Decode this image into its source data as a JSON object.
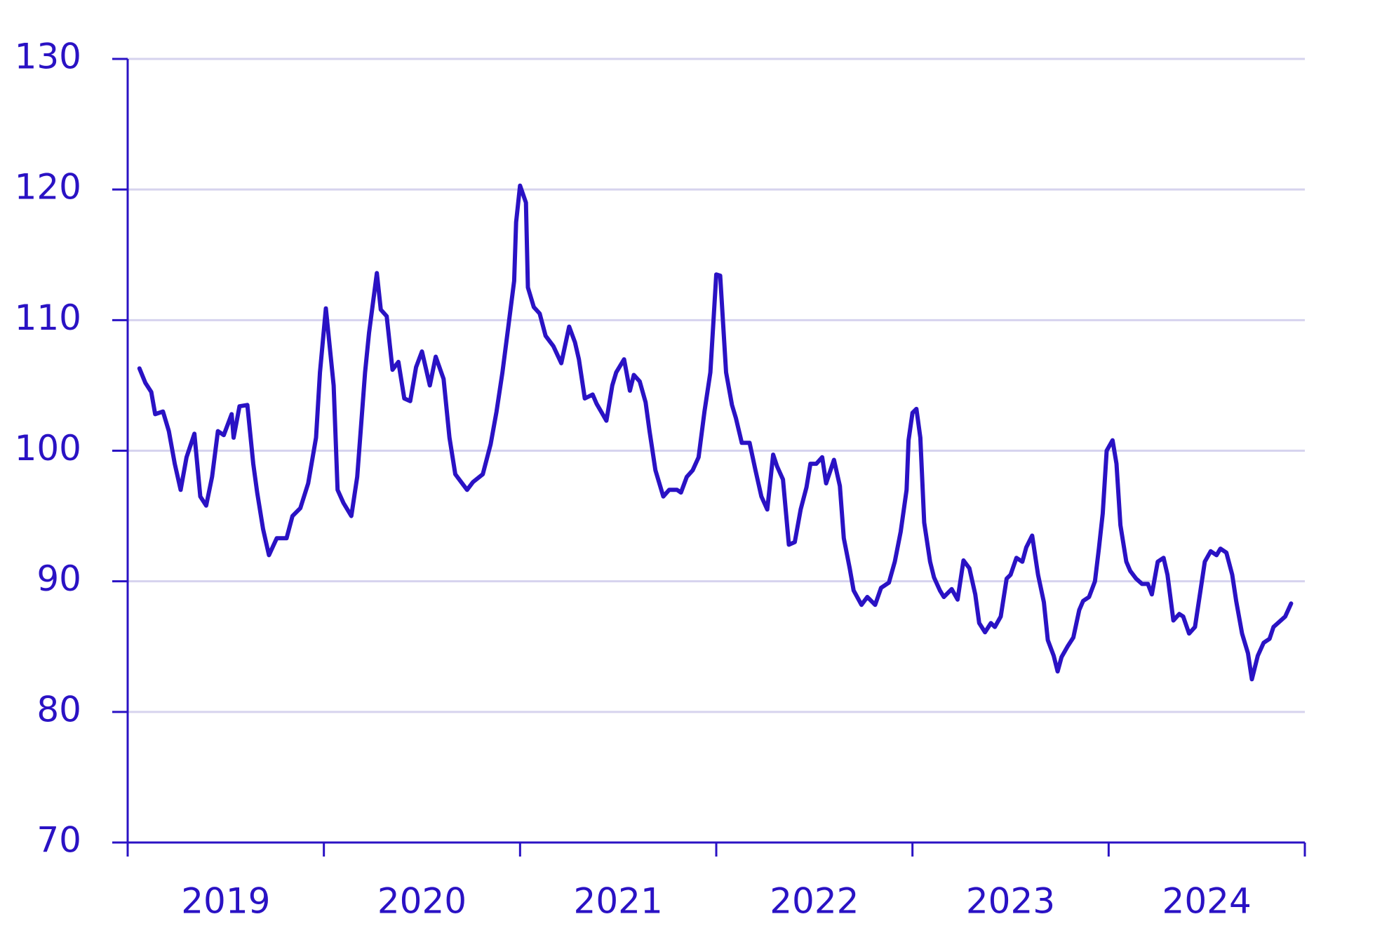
{
  "chart_data": {
    "type": "line",
    "color": "#2a12c4",
    "grid": true,
    "xlim": [
      2019,
      2025
    ],
    "xticks": [
      2019,
      2020,
      2021,
      2022,
      2023,
      2024,
      2025
    ],
    "x_labels": [
      "2019",
      "2020",
      "2021",
      "2022",
      "2023",
      "2024"
    ],
    "ylim": [
      70,
      130
    ],
    "yticks": [
      70,
      80,
      90,
      100,
      110,
      120,
      130
    ],
    "x": [
      2019.06,
      2019.09,
      2019.12,
      2019.14,
      2019.18,
      2019.21,
      2019.24,
      2019.27,
      2019.3,
      2019.34,
      2019.37,
      2019.4,
      2019.43,
      2019.46,
      2019.49,
      2019.53,
      2019.54,
      2019.57,
      2019.61,
      2019.64,
      2019.66,
      2019.69,
      2019.72,
      2019.76,
      2019.81,
      2019.84,
      2019.88,
      2019.92,
      2019.96,
      2019.98,
      2020.01,
      2020.05,
      2020.07,
      2020.1,
      2020.14,
      2020.17,
      2020.19,
      2020.21,
      2020.23,
      2020.27,
      2020.29,
      2020.32,
      2020.35,
      2020.38,
      2020.41,
      2020.44,
      2020.47,
      2020.5,
      2020.54,
      2020.57,
      2020.61,
      2020.64,
      2020.67,
      2020.7,
      2020.73,
      2020.76,
      2020.81,
      2020.85,
      2020.88,
      2020.91,
      2020.94,
      2020.97,
      2020.98,
      2021.0,
      2021.03,
      2021.04,
      2021.07,
      2021.1,
      2021.13,
      2021.17,
      2021.21,
      2021.25,
      2021.28,
      2021.3,
      2021.33,
      2021.37,
      2021.39,
      2021.44,
      2021.47,
      2021.49,
      2021.53,
      2021.56,
      2021.58,
      2021.61,
      2021.64,
      2021.66,
      2021.69,
      2021.73,
      2021.76,
      2021.8,
      2021.82,
      2021.85,
      2021.88,
      2021.91,
      2021.94,
      2021.97,
      2022.0,
      2022.02,
      2022.05,
      2022.08,
      2022.1,
      2022.13,
      2022.17,
      2022.2,
      2022.23,
      2022.26,
      2022.29,
      2022.31,
      2022.34,
      2022.37,
      2022.4,
      2022.43,
      2022.46,
      2022.48,
      2022.51,
      2022.54,
      2022.56,
      2022.6,
      2022.63,
      2022.65,
      2022.68,
      2022.7,
      2022.74,
      2022.77,
      2022.81,
      2022.84,
      2022.88,
      2022.91,
      2022.94,
      2022.97,
      2022.98,
      2023.0,
      2023.02,
      2023.04,
      2023.06,
      2023.09,
      2023.11,
      2023.14,
      2023.16,
      2023.2,
      2023.23,
      2023.26,
      2023.29,
      2023.32,
      2023.34,
      2023.37,
      2023.4,
      2023.42,
      2023.45,
      2023.48,
      2023.5,
      2023.53,
      2023.56,
      2023.58,
      2023.61,
      2023.64,
      2023.67,
      2023.69,
      2023.72,
      2023.74,
      2023.76,
      2023.79,
      2023.82,
      2023.85,
      2023.87,
      2023.9,
      2023.93,
      2023.95,
      2023.97,
      2023.99,
      2024.02,
      2024.04,
      2024.06,
      2024.09,
      2024.11,
      2024.14,
      2024.17,
      2024.2,
      2024.22,
      2024.25,
      2024.28,
      2024.3,
      2024.33,
      2024.36,
      2024.38,
      2024.41,
      2024.44,
      2024.47,
      2024.49,
      2024.52,
      2024.55,
      2024.57,
      2024.6,
      2024.63,
      2024.65,
      2024.68,
      2024.71,
      2024.73,
      2024.76,
      2024.79,
      2024.82,
      2024.84,
      2024.87,
      2024.9,
      2024.93
    ],
    "values": [
      106.3,
      105.2,
      104.5,
      102.8,
      103,
      101.5,
      99,
      97,
      99.5,
      101.3,
      96.5,
      95.8,
      98,
      101.5,
      101.2,
      102.8,
      101,
      103.4,
      103.5,
      99,
      96.8,
      94,
      92,
      93.3,
      93.3,
      95,
      95.6,
      97.5,
      101,
      106,
      110.9,
      105,
      97,
      96,
      95,
      98,
      102,
      106,
      109,
      113.6,
      110.8,
      110.3,
      106.2,
      106.8,
      104,
      103.8,
      106.4,
      107.6,
      105,
      107.2,
      105.5,
      101,
      98.2,
      97.6,
      97,
      97.6,
      98.2,
      100.5,
      103,
      106,
      109.5,
      113,
      117.5,
      120.3,
      119,
      112.5,
      111,
      110.5,
      108.8,
      108,
      106.7,
      109.5,
      108.3,
      107,
      104,
      104.3,
      103.6,
      102.3,
      105,
      106,
      107,
      104.6,
      105.8,
      105.3,
      103.7,
      101.5,
      98.5,
      96.5,
      97,
      97,
      96.8,
      98,
      98.5,
      99.5,
      103,
      106,
      113.5,
      113.4,
      106,
      103.5,
      102.5,
      100.6,
      100.6,
      98.5,
      96.5,
      95.5,
      99.7,
      98.8,
      97.8,
      92.8,
      93,
      95.5,
      97.2,
      99,
      99,
      99.5,
      97.5,
      99.3,
      97.3,
      93.3,
      91,
      89.3,
      88.2,
      88.8,
      88.2,
      89.5,
      89.9,
      91.5,
      93.8,
      97,
      100.8,
      102.9,
      103.2,
      101,
      94.5,
      91.5,
      90.3,
      89.3,
      88.8,
      89.4,
      88.6,
      91.6,
      91,
      89,
      86.8,
      86.1,
      86.8,
      86.5,
      87.3,
      90.2,
      90.5,
      91.8,
      91.5,
      92.6,
      93.5,
      90.5,
      88.4,
      85.5,
      84.3,
      83.1,
      84.2,
      85,
      85.7,
      87.8,
      88.5,
      88.8,
      90,
      92.5,
      95.2,
      100,
      100.8,
      99,
      94.3,
      91.5,
      90.8,
      90.2,
      89.8,
      89.8,
      89,
      91.5,
      91.8,
      90.5,
      87,
      87.5,
      87.3,
      86,
      86.5,
      89.5,
      91.5,
      92.3,
      92,
      92.5,
      92.2,
      90.5,
      88.5,
      86,
      84.5,
      82.5,
      84.3,
      85.3,
      85.6,
      86.5,
      86.9,
      87.3,
      88.3
    ]
  }
}
